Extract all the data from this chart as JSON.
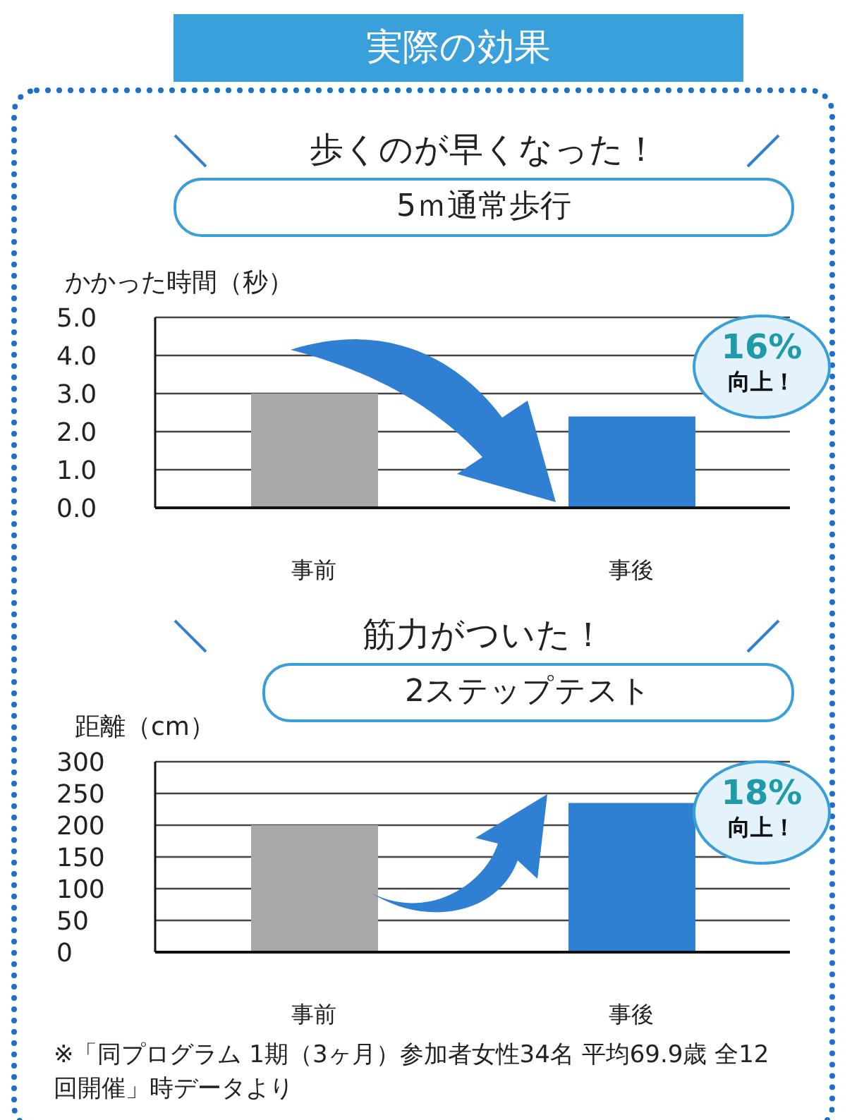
{
  "chart_data": [
    {
      "type": "bar",
      "title": "5ｍ通常歩行",
      "subtitle": "歩くのが早くなった！",
      "ylabel": "かかった時間（秒）",
      "categories": [
        "事前",
        "事後"
      ],
      "values": [
        3.0,
        2.4
      ],
      "colors": [
        "#a8a8a8",
        "#2f80d2"
      ],
      "ylim": [
        0,
        5
      ],
      "yticks": [
        {
          "value": 0,
          "label": "0.0"
        },
        {
          "value": 1,
          "label": "1.0"
        },
        {
          "value": 2,
          "label": "2.0"
        },
        {
          "value": 3,
          "label": "3.0"
        },
        {
          "value": 4,
          "label": "4.0"
        },
        {
          "value": 5,
          "label": "5.0"
        }
      ],
      "grid": "y",
      "legend": false,
      "annotations": [
        "実際の効果",
        "16%",
        "向上！"
      ]
    },
    {
      "type": "bar",
      "title": "2ステップテスト",
      "subtitle": "筋力がついた！",
      "ylabel": "距離（cm）",
      "categories": [
        "事前",
        "事後"
      ],
      "values": [
        200,
        235
      ],
      "colors": [
        "#a8a8a8",
        "#2f80d2"
      ],
      "ylim": [
        0,
        300
      ],
      "yticks": [
        0,
        50,
        100,
        150,
        200,
        250,
        300
      ],
      "grid": "y",
      "legend": false,
      "annotations": [
        "18%",
        "向上！",
        "※「同プログラム 1期（3ヶ月）参加者女性34名 平均69.9歳 全12回開催」時データより"
      ]
    }
  ]
}
